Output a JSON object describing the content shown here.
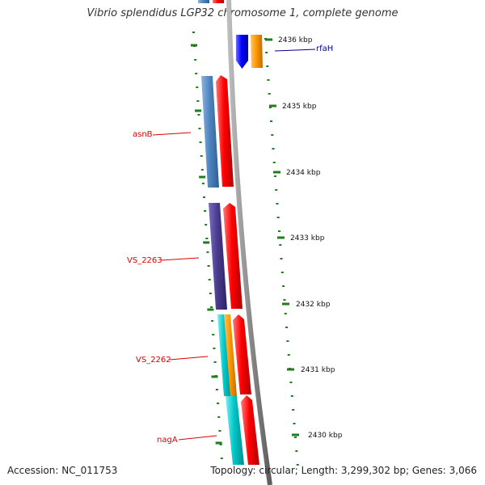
{
  "title": "Vibrio splendidus LGP32 chromosome 1, complete genome",
  "footer": {
    "accession": "Accession: NC_011753",
    "summary": "Topology: circular; Length: 3,299,302 bp; Genes: 3,066"
  },
  "scale_labels": [
    "2436 kbp",
    "2435 kbp",
    "2434 kbp",
    "2433 kbp",
    "2432 kbp",
    "2431 kbp",
    "2430 kbp"
  ],
  "gene_labels": [
    {
      "text": "rfaH",
      "color": "#00008b"
    },
    {
      "text": "asnB",
      "color": "#dd0000"
    },
    {
      "text": "VS_2263",
      "color": "#dd0000"
    },
    {
      "text": "VS_2262",
      "color": "#dd0000"
    },
    {
      "text": "nagA",
      "color": "#dd0000"
    }
  ],
  "colors": {
    "backbone": "#8c8c8c",
    "tick": "#1e7d1e",
    "forward": "#ff0000",
    "steel_blue": "#4f86c0",
    "slate_blue": "#4b3d8f",
    "cyan": "#00c8c8",
    "orange": "#ff9900",
    "blue": "#0000ff"
  }
}
